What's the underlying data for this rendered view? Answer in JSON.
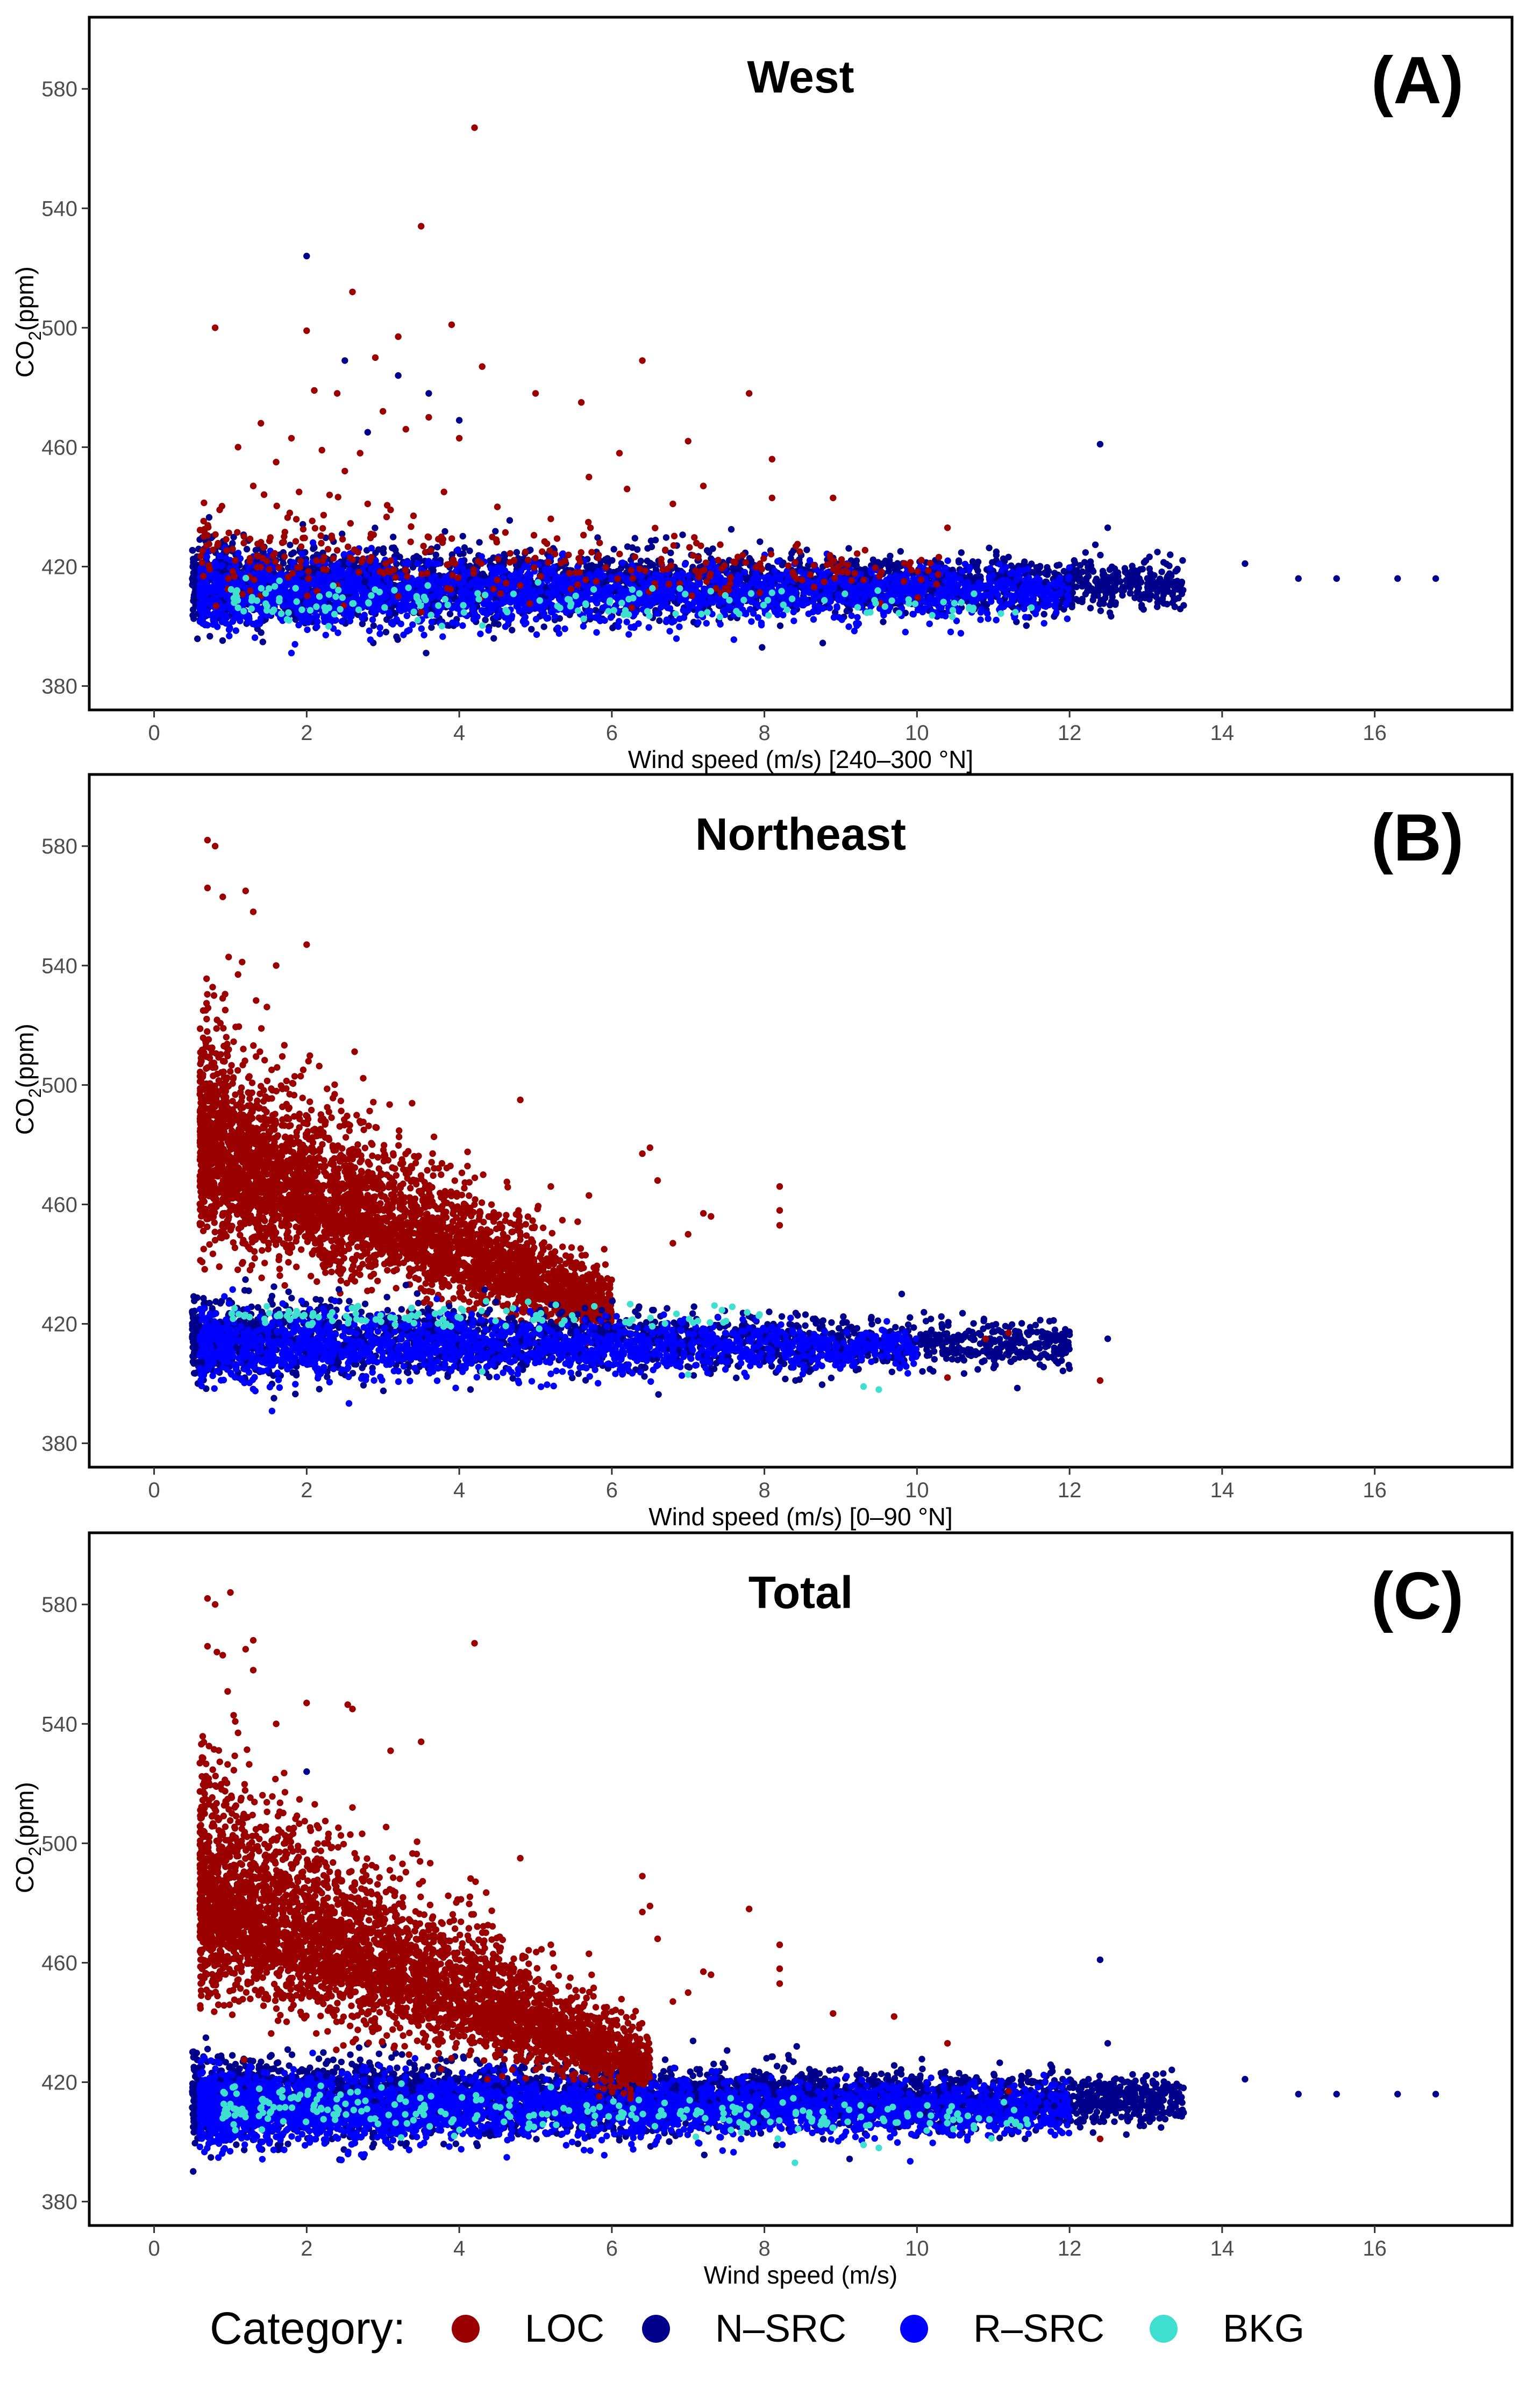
{
  "chart_data": [
    {
      "type": "scatter",
      "panel_label": "(A)",
      "title": "West",
      "xlabel": "Wind speed (m/s) [240–300 °N]",
      "ylabel_main": "CO",
      "ylabel_sub": "2",
      "ylabel_unit": "(ppm)",
      "xlim": [
        -0.85,
        17.8
      ],
      "ylim": [
        372,
        604
      ],
      "xticks": [
        0,
        2,
        4,
        6,
        8,
        10,
        12,
        14,
        16
      ],
      "yticks": [
        380,
        420,
        460,
        500,
        540,
        580
      ],
      "grid": false,
      "series": [
        {
          "name": "LOC",
          "color": "#9b0000",
          "points": [
            [
              0.8,
              500
            ],
            [
              2.0,
              499
            ],
            [
              2.6,
              512
            ],
            [
              3.5,
              534
            ],
            [
              3.9,
              501
            ],
            [
              4.2,
              567
            ],
            [
              3.2,
              497
            ],
            [
              2.9,
              490
            ],
            [
              2.1,
              479
            ],
            [
              2.4,
              478
            ],
            [
              3.0,
              472
            ],
            [
              3.3,
              466
            ],
            [
              1.4,
              468
            ],
            [
              1.8,
              463
            ],
            [
              2.2,
              459
            ],
            [
              2.7,
              458
            ],
            [
              1.1,
              460
            ],
            [
              1.6,
              455
            ],
            [
              2.5,
              452
            ],
            [
              3.6,
              470
            ],
            [
              4.0,
              463
            ],
            [
              4.3,
              487
            ],
            [
              5.0,
              478
            ],
            [
              5.6,
              475
            ],
            [
              6.4,
              489
            ],
            [
              6.1,
              458
            ],
            [
              5.7,
              450
            ],
            [
              7.0,
              462
            ],
            [
              7.2,
              447
            ],
            [
              7.8,
              478
            ],
            [
              8.1,
              456
            ],
            [
              8.1,
              443
            ],
            [
              8.9,
              443
            ],
            [
              10.4,
              433
            ],
            [
              1.3,
              447
            ],
            [
              1.9,
              445
            ],
            [
              2.3,
              444
            ],
            [
              2.8,
              441
            ],
            [
              3.1,
              439
            ],
            [
              3.4,
              437
            ],
            [
              3.8,
              445
            ],
            [
              4.5,
              440
            ],
            [
              5.2,
              436
            ],
            [
              6.2,
              446
            ],
            [
              6.8,
              441
            ]
          ]
        },
        {
          "name": "N–SRC",
          "color": "#00008b",
          "points": [
            [
              2.0,
              524
            ],
            [
              2.5,
              489
            ],
            [
              3.2,
              484
            ],
            [
              3.6,
              478
            ],
            [
              4.0,
              469
            ],
            [
              2.8,
              465
            ],
            [
              12.4,
              461
            ],
            [
              12.5,
              433
            ],
            [
              13.0,
              422
            ],
            [
              14.3,
              421
            ],
            [
              15.0,
              416
            ],
            [
              15.5,
              416
            ],
            [
              16.3,
              416
            ],
            [
              16.8,
              416
            ]
          ]
        },
        {
          "name": "R–SRC",
          "color": "#0000ff",
          "points": []
        },
        {
          "name": "BKG",
          "color": "#40e0d0",
          "points": []
        }
      ],
      "clusters": [
        {
          "series": "N–SRC",
          "x_min": 0.5,
          "x_max": 13.5,
          "y_center": 414,
          "y_spread": 12,
          "y_center_end": 414,
          "spread_end": 7,
          "count": 3200
        },
        {
          "series": "R–SRC",
          "x_min": 0.6,
          "x_max": 12.0,
          "y_center": 411,
          "y_spread": 11,
          "y_center_end": 411,
          "spread_end": 7,
          "count": 2400
        },
        {
          "series": "LOC",
          "x_min": 0.6,
          "x_max": 10.5,
          "y_center": 426,
          "y_spread": 14,
          "y_center_end": 418,
          "spread_end": 6,
          "count": 320
        },
        {
          "series": "BKG",
          "x_min": 1.0,
          "x_max": 11.5,
          "y_center": 409,
          "y_spread": 6,
          "y_center_end": 406,
          "spread_end": 4,
          "count": 160
        }
      ]
    },
    {
      "type": "scatter",
      "panel_label": "(B)",
      "title": "Northeast",
      "xlabel": "Wind speed (m/s) [0–90 °N]",
      "ylabel_main": "CO",
      "ylabel_sub": "2",
      "ylabel_unit": "(ppm)",
      "xlim": [
        -0.85,
        17.8
      ],
      "ylim": [
        372,
        604
      ],
      "xticks": [
        0,
        2,
        4,
        6,
        8,
        10,
        12,
        14,
        16
      ],
      "yticks": [
        380,
        420,
        460,
        500,
        540,
        580
      ],
      "grid": false,
      "series": [
        {
          "name": "LOC",
          "color": "#9b0000",
          "points": [
            [
              0.7,
              582
            ],
            [
              0.8,
              580
            ],
            [
              0.7,
              566
            ],
            [
              0.9,
              563
            ],
            [
              1.2,
              565
            ],
            [
              1.3,
              558
            ],
            [
              2.0,
              547
            ],
            [
              1.6,
              540
            ],
            [
              1.1,
              537
            ],
            [
              4.8,
              495
            ],
            [
              6.4,
              477
            ],
            [
              6.5,
              479
            ],
            [
              5.2,
              466
            ],
            [
              5.7,
              463
            ],
            [
              6.6,
              468
            ],
            [
              7.2,
              457
            ],
            [
              7.3,
              456
            ],
            [
              8.2,
              466
            ],
            [
              8.2,
              458
            ],
            [
              8.2,
              453
            ],
            [
              7.0,
              450
            ],
            [
              6.8,
              447
            ],
            [
              5.9,
              445
            ],
            [
              11.2,
              417
            ],
            [
              12.4,
              401
            ],
            [
              10.9,
              415
            ],
            [
              10.4,
              402
            ]
          ]
        },
        {
          "name": "N–SRC",
          "color": "#00008b",
          "points": [
            [
              11.8,
              412
            ],
            [
              12.0,
              405
            ],
            [
              12.5,
              415
            ],
            [
              9.8,
              430
            ]
          ]
        },
        {
          "name": "R–SRC",
          "color": "#0000ff",
          "points": []
        },
        {
          "name": "BKG",
          "color": "#40e0d0",
          "points": [
            [
              9.3,
              399
            ],
            [
              9.5,
              398
            ],
            [
              7.0,
              403
            ],
            [
              4.3,
              404
            ]
          ]
        }
      ],
      "clusters": [
        {
          "series": "LOC",
          "x_min": 0.6,
          "x_max": 6.0,
          "y_center": 465,
          "y_spread": 28,
          "y_center_end": 420,
          "spread_end": 8,
          "count": 4200
        },
        {
          "series": "N–SRC",
          "x_min": 0.5,
          "x_max": 12.0,
          "y_center": 415,
          "y_spread": 12,
          "y_center_end": 413,
          "spread_end": 7,
          "count": 2200
        },
        {
          "series": "R–SRC",
          "x_min": 0.6,
          "x_max": 10.0,
          "y_center": 413,
          "y_spread": 11,
          "y_center_end": 412,
          "spread_end": 6,
          "count": 1600
        },
        {
          "series": "BKG",
          "x_min": 0.9,
          "x_max": 8.0,
          "y_center": 423,
          "y_spread": 4,
          "y_center_end": 422,
          "spread_end": 4,
          "count": 110
        }
      ]
    },
    {
      "type": "scatter",
      "panel_label": "(C)",
      "title": "Total",
      "xlabel": "Wind speed (m/s)",
      "ylabel_main": "CO",
      "ylabel_sub": "2",
      "ylabel_unit": "(ppm)",
      "xlim": [
        -0.85,
        17.8
      ],
      "ylim": [
        372,
        604
      ],
      "xticks": [
        0,
        2,
        4,
        6,
        8,
        10,
        12,
        14,
        16
      ],
      "yticks": [
        380,
        420,
        460,
        500,
        540,
        580
      ],
      "grid": false,
      "series": [
        {
          "name": "LOC",
          "color": "#9b0000",
          "points": [
            [
              0.7,
              582
            ],
            [
              0.8,
              580
            ],
            [
              1.0,
              584
            ],
            [
              0.7,
              566
            ],
            [
              0.9,
              563
            ],
            [
              1.2,
              565
            ],
            [
              1.3,
              568
            ],
            [
              1.3,
              558
            ],
            [
              2.0,
              547
            ],
            [
              2.6,
              545
            ],
            [
              1.6,
              540
            ],
            [
              1.1,
              537
            ],
            [
              3.5,
              534
            ],
            [
              3.1,
              531
            ],
            [
              4.2,
              567
            ],
            [
              2.6,
              512
            ],
            [
              4.8,
              495
            ],
            [
              6.4,
              489
            ],
            [
              6.4,
              477
            ],
            [
              6.5,
              479
            ],
            [
              7.8,
              478
            ],
            [
              5.2,
              466
            ],
            [
              5.7,
              463
            ],
            [
              6.6,
              468
            ],
            [
              7.2,
              457
            ],
            [
              7.3,
              456
            ],
            [
              8.2,
              466
            ],
            [
              8.2,
              458
            ],
            [
              8.2,
              453
            ],
            [
              7.0,
              450
            ],
            [
              6.8,
              447
            ],
            [
              5.9,
              445
            ],
            [
              8.9,
              443
            ],
            [
              9.7,
              442
            ],
            [
              10.4,
              433
            ],
            [
              11.2,
              417
            ],
            [
              12.4,
              401
            ]
          ]
        },
        {
          "name": "N–SRC",
          "color": "#00008b",
          "points": [
            [
              2.0,
              524
            ],
            [
              12.4,
              461
            ],
            [
              12.5,
              433
            ],
            [
              13.0,
              422
            ],
            [
              14.3,
              421
            ],
            [
              15.0,
              416
            ],
            [
              15.5,
              416
            ],
            [
              16.3,
              416
            ],
            [
              16.8,
              416
            ],
            [
              11.8,
              412
            ],
            [
              12.5,
              415
            ]
          ]
        },
        {
          "name": "R–SRC",
          "color": "#0000ff",
          "points": []
        },
        {
          "name": "BKG",
          "color": "#40e0d0",
          "points": [
            [
              8.4,
              393
            ],
            [
              9.3,
              399
            ],
            [
              9.5,
              398
            ]
          ]
        }
      ],
      "clusters": [
        {
          "series": "N–SRC",
          "x_min": 0.5,
          "x_max": 13.5,
          "y_center": 414,
          "y_spread": 12,
          "y_center_end": 414,
          "spread_end": 7,
          "count": 4200
        },
        {
          "series": "R–SRC",
          "x_min": 0.6,
          "x_max": 12.0,
          "y_center": 411,
          "y_spread": 11,
          "y_center_end": 411,
          "spread_end": 7,
          "count": 3200
        },
        {
          "series": "LOC",
          "x_min": 0.6,
          "x_max": 6.5,
          "y_center": 468,
          "y_spread": 30,
          "y_center_end": 421,
          "spread_end": 8,
          "count": 4300
        },
        {
          "series": "BKG",
          "x_min": 0.9,
          "x_max": 11.5,
          "y_center": 412,
          "y_spread": 8,
          "y_center_end": 407,
          "spread_end": 4,
          "count": 260
        }
      ]
    }
  ],
  "legend": {
    "title": "Category:",
    "items": [
      {
        "label": "LOC",
        "color": "#9b0000"
      },
      {
        "label": "N–SRC",
        "color": "#00008b"
      },
      {
        "label": "R–SRC",
        "color": "#0000ff"
      },
      {
        "label": "BKG",
        "color": "#40e0d0"
      }
    ]
  }
}
